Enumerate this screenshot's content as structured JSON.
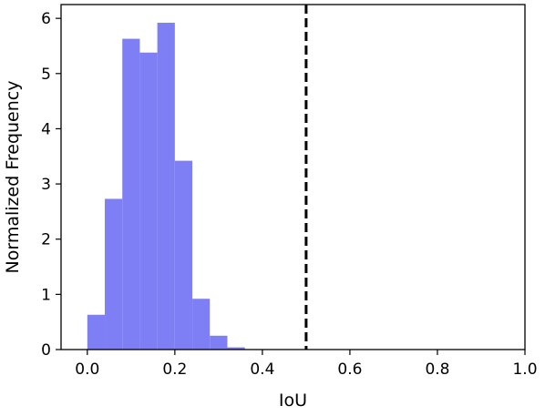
{
  "chart_data": {
    "type": "bar",
    "subtype": "histogram",
    "xlabel": "IoU",
    "ylabel": "Normalized Frequency",
    "xlim": [
      -0.06,
      1.0
    ],
    "ylim": [
      0,
      6.25
    ],
    "xticks": [
      "0.0",
      "0.2",
      "0.4",
      "0.6",
      "0.8",
      "1.0"
    ],
    "xtick_values": [
      0.0,
      0.2,
      0.4,
      0.6,
      0.8,
      1.0
    ],
    "yticks": [
      "0",
      "1",
      "2",
      "3",
      "4",
      "5",
      "6"
    ],
    "ytick_values": [
      0,
      1,
      2,
      3,
      4,
      5,
      6
    ],
    "bin_edges": [
      0.0,
      0.04,
      0.08,
      0.12,
      0.16,
      0.2,
      0.24,
      0.28,
      0.32,
      0.36
    ],
    "values": [
      0.63,
      2.73,
      5.63,
      5.38,
      5.92,
      3.42,
      0.92,
      0.25,
      0.04
    ],
    "bar_color": "#7f7ff5",
    "threshold_line": {
      "x": 0.5,
      "style": "dashed",
      "color": "#000000"
    },
    "grid": false,
    "legend": "none"
  }
}
